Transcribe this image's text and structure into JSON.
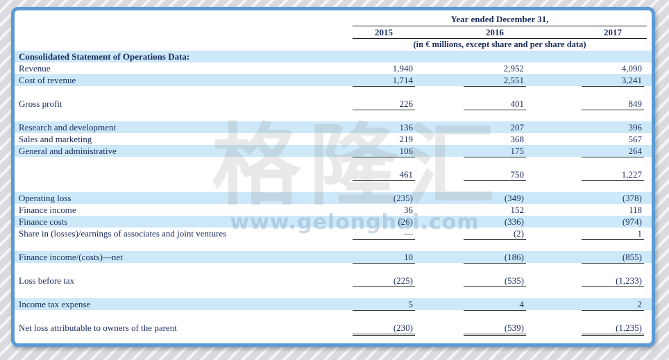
{
  "watermark": {
    "logo": "格隆汇",
    "url": "www.gelonghui.com"
  },
  "header": {
    "period_title": "Year ended December 31,",
    "years": [
      "2015",
      "2016",
      "2017"
    ],
    "units_note": "(in € millions, except share and per share data)"
  },
  "table": {
    "rows": [
      {
        "label": "Consolidated Statement of Operations Data:",
        "values": [
          "",
          "",
          ""
        ],
        "highlight": true,
        "bold": true
      },
      {
        "label": "Revenue",
        "values": [
          "1,940",
          "2,952",
          "4,090"
        ]
      },
      {
        "label": "Cost of revenue",
        "values": [
          "1,714",
          "2,551",
          "3,241"
        ],
        "highlight": true,
        "underline": true
      },
      {
        "spacer": true
      },
      {
        "label": "Gross profit",
        "values": [
          "226",
          "401",
          "849"
        ],
        "underline": true
      },
      {
        "spacer": true
      },
      {
        "label": "Research and development",
        "values": [
          "136",
          "207",
          "396"
        ],
        "highlight": true
      },
      {
        "label": "Sales and marketing",
        "values": [
          "219",
          "368",
          "567"
        ]
      },
      {
        "label": "General and administrative",
        "values": [
          "106",
          "175",
          "264"
        ],
        "highlight": true,
        "underline": true
      },
      {
        "spacer": true
      },
      {
        "label": "",
        "values": [
          "461",
          "750",
          "1,227"
        ],
        "underline": true
      },
      {
        "spacer": true
      },
      {
        "label": "Operating loss",
        "values": [
          "(235)",
          "(349)",
          "(378)"
        ],
        "highlight": true
      },
      {
        "label": "Finance income",
        "values": [
          "36",
          "152",
          "118"
        ]
      },
      {
        "label": "Finance costs",
        "values": [
          "(26)",
          "(336)",
          "(974)"
        ],
        "highlight": true
      },
      {
        "label": "Share in (losses)/earnings of associates and joint ventures",
        "values": [
          "—",
          "(2)",
          "1"
        ],
        "underline": true
      },
      {
        "spacer": true
      },
      {
        "label": "Finance income/(costs)—net",
        "values": [
          "10",
          "(186)",
          "(855)"
        ],
        "highlight": true,
        "underline": true
      },
      {
        "spacer": true
      },
      {
        "label": "Loss before tax",
        "values": [
          "(225)",
          "(535)",
          "(1,233)"
        ],
        "underline": true
      },
      {
        "spacer": true
      },
      {
        "label": "Income tax expense",
        "values": [
          "5",
          "4",
          "2"
        ],
        "highlight": true,
        "underline": true
      },
      {
        "spacer": true
      },
      {
        "label": "Net loss attributable to owners of the parent",
        "values": [
          "(230)",
          "(539)",
          "(1,235)"
        ],
        "double_underline": true
      }
    ]
  },
  "colors": {
    "panel_border": "#5b9bd5",
    "row_highlight": "#cde8f8",
    "text": "#1a2c5b"
  }
}
